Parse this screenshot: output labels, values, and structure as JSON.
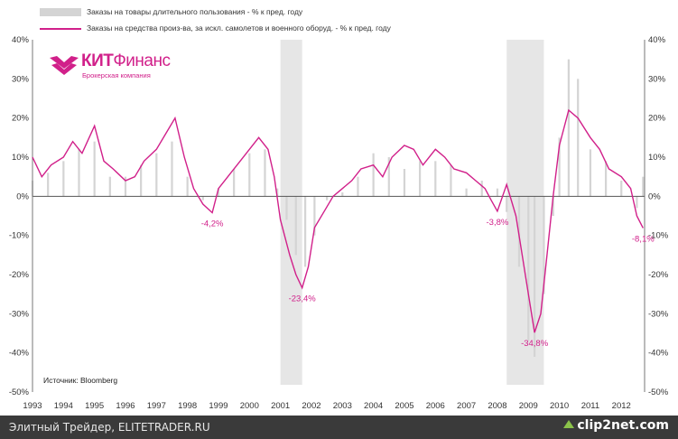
{
  "chart_data": {
    "type": "bar+line",
    "title": "",
    "source": "Источник: Bloomberg",
    "ylim": [
      -50,
      40
    ],
    "yticks_left": [
      "40%",
      "30%",
      "20%",
      "10%",
      "0%",
      "-10%",
      "-20%",
      "-30%",
      "-40%",
      "-50%"
    ],
    "yticks_right": [
      "40%",
      "30%",
      "20%",
      "10%",
      "0%",
      "-10%",
      "-20%",
      "-30%",
      "-40%",
      "-50%"
    ],
    "x_start": 1993.0,
    "x_end": 2012.75,
    "x_tick_labels": [
      "1993",
      "1994",
      "1995",
      "1996",
      "1997",
      "1998",
      "1999",
      "2000",
      "2001",
      "2002",
      "2003",
      "2004",
      "2005",
      "2006",
      "2007",
      "2008",
      "2009",
      "2010",
      "2011",
      "2012"
    ],
    "recessions": [
      [
        2001.0,
        2001.7
      ],
      [
        2008.3,
        2009.5
      ]
    ],
    "series": [
      {
        "name": "Заказы на товары длительного пользования - % к пред. году",
        "kind": "bar",
        "color": "#d4d4d4",
        "points": [
          [
            1993.0,
            4
          ],
          [
            1993.5,
            6
          ],
          [
            1994.0,
            9
          ],
          [
            1994.5,
            12
          ],
          [
            1995.0,
            14
          ],
          [
            1995.5,
            5
          ],
          [
            1996.0,
            5
          ],
          [
            1996.5,
            8
          ],
          [
            1997.0,
            11
          ],
          [
            1997.5,
            14
          ],
          [
            1998.0,
            5
          ],
          [
            1998.5,
            -1
          ],
          [
            1999.0,
            2
          ],
          [
            1999.5,
            7
          ],
          [
            2000.0,
            11
          ],
          [
            2000.5,
            12
          ],
          [
            2000.9,
            2
          ],
          [
            2001.2,
            -6
          ],
          [
            2001.5,
            -15
          ],
          [
            2001.8,
            -18
          ],
          [
            2002.1,
            -10
          ],
          [
            2002.5,
            -1
          ],
          [
            2003.0,
            1
          ],
          [
            2003.5,
            5
          ],
          [
            2004.0,
            11
          ],
          [
            2004.5,
            10
          ],
          [
            2005.0,
            7
          ],
          [
            2005.5,
            9
          ],
          [
            2006.0,
            9
          ],
          [
            2006.5,
            8
          ],
          [
            2007.0,
            2
          ],
          [
            2007.5,
            4
          ],
          [
            2008.0,
            2
          ],
          [
            2008.3,
            -4
          ],
          [
            2008.7,
            -18
          ],
          [
            2009.0,
            -37
          ],
          [
            2009.2,
            -41
          ],
          [
            2009.5,
            -25
          ],
          [
            2009.8,
            -5
          ],
          [
            2010.0,
            15
          ],
          [
            2010.3,
            35
          ],
          [
            2010.6,
            30
          ],
          [
            2011.0,
            12
          ],
          [
            2011.5,
            9
          ],
          [
            2012.0,
            4
          ],
          [
            2012.5,
            -3
          ],
          [
            2012.7,
            5
          ]
        ]
      },
      {
        "name": "Заказы на средства произ-ва, за искл. самолетов и военного оборуд. - % к пред. году",
        "kind": "line",
        "color": "#d1208a",
        "points": [
          [
            1993.0,
            10
          ],
          [
            1993.3,
            5
          ],
          [
            1993.6,
            8
          ],
          [
            1994.0,
            10
          ],
          [
            1994.3,
            14
          ],
          [
            1994.6,
            11
          ],
          [
            1995.0,
            18
          ],
          [
            1995.3,
            9
          ],
          [
            1995.6,
            7
          ],
          [
            1996.0,
            4
          ],
          [
            1996.3,
            5
          ],
          [
            1996.6,
            9
          ],
          [
            1997.0,
            12
          ],
          [
            1997.3,
            16
          ],
          [
            1997.6,
            20
          ],
          [
            1997.9,
            10
          ],
          [
            1998.2,
            2
          ],
          [
            1998.5,
            -2
          ],
          [
            1998.8,
            -4.2
          ],
          [
            1999.0,
            2
          ],
          [
            1999.3,
            5
          ],
          [
            1999.6,
            8
          ],
          [
            2000.0,
            12
          ],
          [
            2000.3,
            15
          ],
          [
            2000.6,
            12
          ],
          [
            2000.8,
            5
          ],
          [
            2001.0,
            -6
          ],
          [
            2001.3,
            -15
          ],
          [
            2001.5,
            -20
          ],
          [
            2001.7,
            -23.4
          ],
          [
            2001.9,
            -18
          ],
          [
            2002.1,
            -8
          ],
          [
            2002.4,
            -4
          ],
          [
            2002.7,
            0
          ],
          [
            2003.0,
            2
          ],
          [
            2003.3,
            4
          ],
          [
            2003.6,
            7
          ],
          [
            2004.0,
            8
          ],
          [
            2004.3,
            5
          ],
          [
            2004.6,
            10
          ],
          [
            2005.0,
            13
          ],
          [
            2005.3,
            12
          ],
          [
            2005.6,
            8
          ],
          [
            2006.0,
            12
          ],
          [
            2006.3,
            10
          ],
          [
            2006.6,
            7
          ],
          [
            2007.0,
            6
          ],
          [
            2007.3,
            4
          ],
          [
            2007.6,
            2
          ],
          [
            2007.8,
            -1
          ],
          [
            2008.0,
            -3.8
          ],
          [
            2008.3,
            3
          ],
          [
            2008.6,
            -5
          ],
          [
            2008.8,
            -15
          ],
          [
            2009.0,
            -25
          ],
          [
            2009.2,
            -34.8
          ],
          [
            2009.4,
            -30
          ],
          [
            2009.6,
            -15
          ],
          [
            2009.8,
            0
          ],
          [
            2010.0,
            13
          ],
          [
            2010.3,
            22
          ],
          [
            2010.6,
            20
          ],
          [
            2011.0,
            15
          ],
          [
            2011.3,
            12
          ],
          [
            2011.6,
            7
          ],
          [
            2012.0,
            5
          ],
          [
            2012.3,
            2
          ],
          [
            2012.5,
            -5
          ],
          [
            2012.7,
            -8.1
          ]
        ]
      }
    ],
    "annotations": [
      {
        "x": 1998.8,
        "y": -4.2,
        "text": "-4,2%"
      },
      {
        "x": 2001.7,
        "y": -23.4,
        "text": "-23,4%"
      },
      {
        "x": 2008.0,
        "y": -3.8,
        "text": "-3,8%"
      },
      {
        "x": 2009.2,
        "y": -34.8,
        "text": "-34,8%"
      },
      {
        "x": 2012.7,
        "y": -8.1,
        "text": "-8,1%"
      }
    ]
  },
  "logo": {
    "word_strong": "КИТ",
    "word_rest": "Финанс",
    "sub": "Брокерская компания"
  },
  "footer": {
    "text": "Элитный Трейдер, ELITETRADER.RU",
    "brand": "clip2net.com"
  }
}
